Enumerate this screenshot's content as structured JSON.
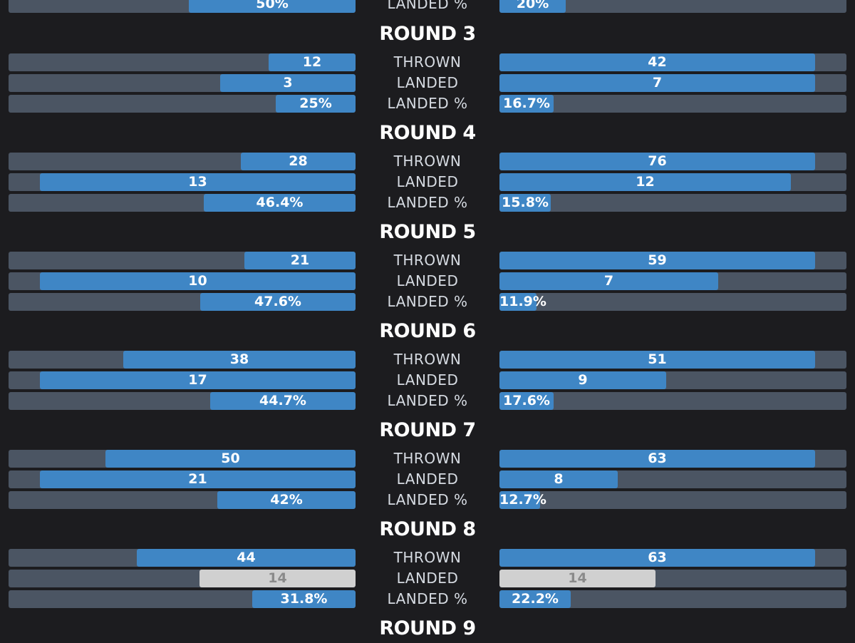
{
  "colors": {
    "background": "#1c1c1f",
    "track": "#4b5563",
    "fill": "#3f86c5",
    "tie_fill": "#d0d0d0",
    "text": "#ffffff"
  },
  "chart_data": {
    "type": "bar",
    "row_labels": [
      "THROWN",
      "LANDED",
      "LANDED %"
    ],
    "partial_top_row": {
      "label": "LANDED %",
      "left": "50%",
      "right": "20%",
      "left_pct": 50,
      "right_pct": 20
    },
    "rounds": [
      {
        "title": "ROUND 3",
        "rows": [
          {
            "label": "THROWN",
            "left": "12",
            "right": "42",
            "left_frac": 0.25,
            "right_frac": 0.91
          },
          {
            "label": "LANDED",
            "left": "3",
            "right": "7",
            "left_frac": 0.39,
            "right_frac": 0.91
          },
          {
            "label": "LANDED %",
            "left": "25%",
            "right": "16.7%",
            "left_frac": 0.23,
            "right_frac": 0.157
          }
        ]
      },
      {
        "title": "ROUND 4",
        "rows": [
          {
            "label": "THROWN",
            "left": "28",
            "right": "76",
            "left_frac": 0.33,
            "right_frac": 0.91
          },
          {
            "label": "LANDED",
            "left": "13",
            "right": "12",
            "left_frac": 0.91,
            "right_frac": 0.84
          },
          {
            "label": "LANDED %",
            "left": "46.4%",
            "right": "15.8%",
            "left_frac": 0.437,
            "right_frac": 0.148
          }
        ]
      },
      {
        "title": "ROUND 5",
        "rows": [
          {
            "label": "THROWN",
            "left": "21",
            "right": "59",
            "left_frac": 0.32,
            "right_frac": 0.91
          },
          {
            "label": "LANDED",
            "left": "10",
            "right": "7",
            "left_frac": 0.91,
            "right_frac": 0.63
          },
          {
            "label": "LANDED %",
            "left": "47.6%",
            "right": "11.9%",
            "left_frac": 0.448,
            "right_frac": 0.107
          }
        ]
      },
      {
        "title": "ROUND 6",
        "rows": [
          {
            "label": "THROWN",
            "left": "38",
            "right": "51",
            "left_frac": 0.67,
            "right_frac": 0.91
          },
          {
            "label": "LANDED",
            "left": "17",
            "right": "9",
            "left_frac": 0.91,
            "right_frac": 0.48
          },
          {
            "label": "LANDED %",
            "left": "44.7%",
            "right": "17.6%",
            "left_frac": 0.418,
            "right_frac": 0.157
          }
        ]
      },
      {
        "title": "ROUND 7",
        "rows": [
          {
            "label": "THROWN",
            "left": "50",
            "right": "63",
            "left_frac": 0.72,
            "right_frac": 0.91
          },
          {
            "label": "LANDED",
            "left": "21",
            "right": "8",
            "left_frac": 0.91,
            "right_frac": 0.34
          },
          {
            "label": "LANDED %",
            "left": "42%",
            "right": "12.7%",
            "left_frac": 0.398,
            "right_frac": 0.117
          }
        ]
      },
      {
        "title": "ROUND 8",
        "rows": [
          {
            "label": "THROWN",
            "left": "44",
            "right": "63",
            "left_frac": 0.63,
            "right_frac": 0.91
          },
          {
            "label": "LANDED",
            "left": "14",
            "right": "14",
            "left_frac": 0.45,
            "right_frac": 0.45,
            "tie": true
          },
          {
            "label": "LANDED %",
            "left": "31.8%",
            "right": "22.2%",
            "left_frac": 0.298,
            "right_frac": 0.206
          }
        ]
      }
    ],
    "partial_bottom_title": "ROUND 9"
  }
}
